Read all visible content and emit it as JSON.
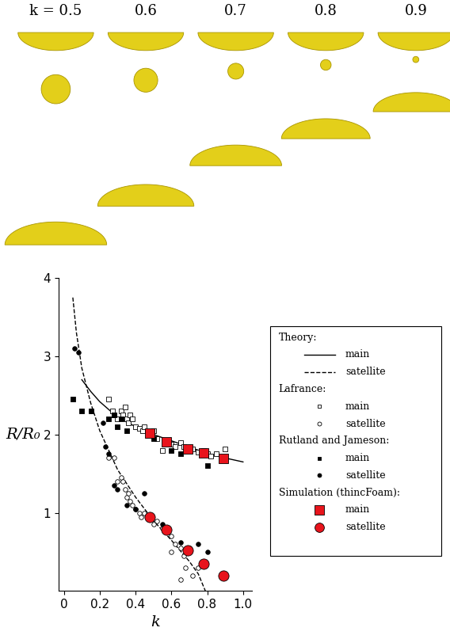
{
  "chart_data": {
    "type": "scatter",
    "x_label": "k",
    "y_label": "R/R₀",
    "xlim": [
      -0.03,
      1.05
    ],
    "xticks": [
      0,
      0.2,
      0.4,
      0.6,
      0.8,
      1.0
    ],
    "ylim": [
      0,
      4
    ],
    "yticks": [
      1,
      2,
      3,
      4
    ],
    "series": [
      {
        "group": "Theory:",
        "name": "main",
        "type": "line",
        "line_style": "solid",
        "color": "#000000",
        "x": [
          0.1,
          0.15,
          0.2,
          0.3,
          0.4,
          0.5,
          0.6,
          0.7,
          0.8,
          0.9,
          1.0
        ],
        "values": [
          2.7,
          2.55,
          2.42,
          2.22,
          2.1,
          2.0,
          1.92,
          1.84,
          1.76,
          1.7,
          1.65
        ]
      },
      {
        "group": "Theory:",
        "name": "satellite",
        "type": "line",
        "line_style": "dashed",
        "color": "#000000",
        "x": [
          0.05,
          0.07,
          0.1,
          0.15,
          0.2,
          0.3,
          0.4,
          0.5,
          0.6,
          0.7,
          0.75,
          0.79
        ],
        "values": [
          3.75,
          3.3,
          2.85,
          2.4,
          2.05,
          1.55,
          1.2,
          0.9,
          0.65,
          0.38,
          0.22,
          0.0
        ]
      },
      {
        "group": "Lafrance:",
        "name": "main",
        "type": "scatter",
        "marker": "open_square",
        "color": "#000000",
        "x": [
          0.25,
          0.27,
          0.28,
          0.3,
          0.32,
          0.33,
          0.34,
          0.35,
          0.36,
          0.37,
          0.38,
          0.4,
          0.42,
          0.44,
          0.45,
          0.47,
          0.5,
          0.52,
          0.55,
          0.57,
          0.6,
          0.62,
          0.65,
          0.67,
          0.7,
          0.72,
          0.75,
          0.78,
          0.8,
          0.82,
          0.85,
          0.9
        ],
        "values": [
          2.45,
          2.3,
          2.25,
          2.2,
          2.3,
          2.25,
          2.35,
          2.2,
          2.15,
          2.25,
          2.2,
          2.1,
          2.08,
          2.05,
          2.1,
          2.0,
          2.05,
          1.95,
          1.8,
          1.9,
          1.88,
          1.85,
          1.9,
          1.85,
          1.8,
          1.82,
          1.78,
          1.8,
          1.75,
          1.72,
          1.75,
          1.82
        ]
      },
      {
        "group": "Lafrance:",
        "name": "satellite",
        "type": "scatter",
        "marker": "open_circle",
        "color": "#000000",
        "x": [
          0.25,
          0.28,
          0.3,
          0.32,
          0.33,
          0.34,
          0.35,
          0.36,
          0.37,
          0.38,
          0.4,
          0.42,
          0.43,
          0.45,
          0.5,
          0.52,
          0.55,
          0.6,
          0.62,
          0.65,
          0.67,
          0.68,
          0.7,
          0.72,
          0.75,
          0.65,
          0.6
        ],
        "values": [
          1.7,
          1.7,
          1.4,
          1.45,
          1.4,
          1.3,
          1.2,
          1.25,
          1.15,
          1.1,
          1.05,
          1.0,
          0.95,
          1.0,
          0.85,
          0.9,
          0.8,
          0.7,
          0.6,
          0.55,
          0.45,
          0.3,
          0.55,
          0.2,
          0.3,
          0.15,
          0.5
        ]
      },
      {
        "group": "Rutland and Jameson:",
        "name": "main",
        "type": "scatter",
        "marker": "square",
        "color": "#000000",
        "x": [
          0.05,
          0.1,
          0.15,
          0.25,
          0.28,
          0.3,
          0.32,
          0.35,
          0.5,
          0.6,
          0.65,
          0.8
        ],
        "values": [
          2.45,
          2.3,
          2.3,
          2.2,
          2.25,
          2.1,
          2.2,
          2.05,
          1.95,
          1.8,
          1.75,
          1.6
        ]
      },
      {
        "group": "Rutland and Jameson:",
        "name": "satellite",
        "type": "scatter",
        "marker": "circle",
        "color": "#000000",
        "x": [
          0.06,
          0.08,
          0.15,
          0.22,
          0.23,
          0.25,
          0.28,
          0.3,
          0.35,
          0.4,
          0.45,
          0.55,
          0.65,
          0.75,
          0.8
        ],
        "values": [
          3.1,
          3.05,
          2.3,
          2.15,
          1.85,
          1.75,
          1.35,
          1.3,
          1.1,
          1.05,
          1.25,
          0.85,
          0.62,
          0.6,
          0.5
        ]
      },
      {
        "group": "Simulation (thincFoam):",
        "name": "main",
        "type": "scatter",
        "marker": "square",
        "color": "#e8141c",
        "x": [
          0.48,
          0.57,
          0.69,
          0.78,
          0.89
        ],
        "values": [
          2.02,
          1.91,
          1.82,
          1.76,
          1.69
        ]
      },
      {
        "group": "Simulation (thincFoam):",
        "name": "satellite",
        "type": "scatter",
        "marker": "circle",
        "color": "#e8141c",
        "x": [
          0.48,
          0.57,
          0.69,
          0.78,
          0.89
        ],
        "values": [
          0.95,
          0.78,
          0.52,
          0.35,
          0.2
        ]
      }
    ]
  },
  "shapes": {
    "labels": [
      "k = 0.5",
      "0.6",
      "0.7",
      "0.8",
      "0.9"
    ]
  }
}
